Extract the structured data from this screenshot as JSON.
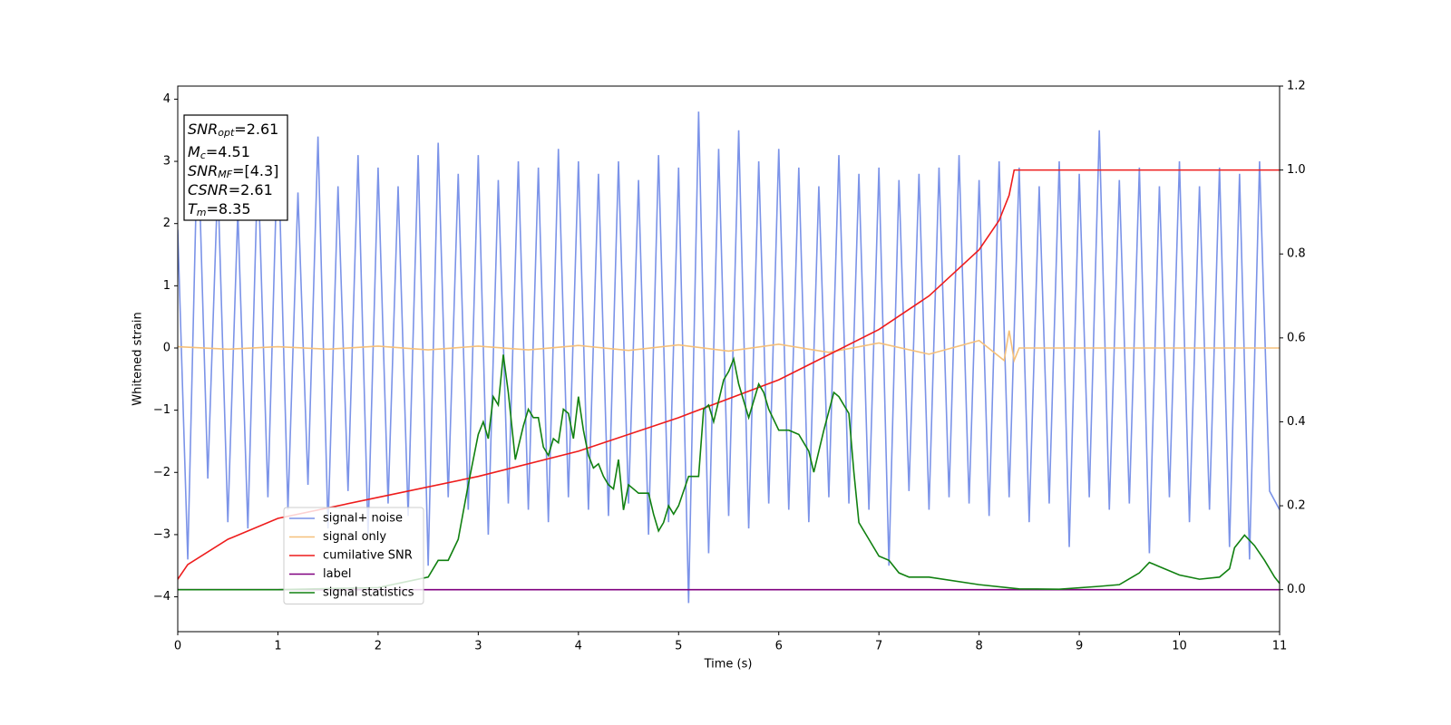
{
  "chart_data": {
    "type": "line",
    "xlabel": "Time (s)",
    "ylabel": "Whitened strain",
    "xlim": [
      0,
      11
    ],
    "xticks": [
      0,
      1,
      2,
      3,
      4,
      5,
      6,
      7,
      8,
      9,
      10,
      11
    ],
    "ylim": [
      -4.56,
      4.21
    ],
    "yticks": [
      {
        "value": -4,
        "label": "−4"
      },
      {
        "value": -3,
        "label": "−3"
      },
      {
        "value": -2,
        "label": "−2"
      },
      {
        "value": -1,
        "label": "−1"
      },
      0,
      1,
      2,
      3,
      4
    ],
    "y2lim": [
      -0.1,
      1.2
    ],
    "y2ticks": [
      {
        "value": 0,
        "label": "0.0"
      },
      {
        "value": 0.2,
        "label": "0.2"
      },
      {
        "value": 0.4,
        "label": "0.4"
      },
      {
        "value": 0.6,
        "label": "0.6"
      },
      {
        "value": 0.8,
        "label": "0.8"
      },
      {
        "value": 1,
        "label": "1.0"
      },
      {
        "value": 1.2,
        "label": "1.2"
      }
    ],
    "legend": "lower left",
    "annotations": [
      {
        "text": "SNR",
        "sub": "opt",
        "after": "=2.61"
      },
      {
        "text": "M",
        "sub": "c",
        "after": "=4.51"
      },
      {
        "text": "SNR",
        "sub": "MF",
        "after": "=[4.3]"
      },
      {
        "text": "CSNR",
        "after": "=2.61"
      },
      {
        "text": "T",
        "sub": "m",
        "after": "=8.35"
      }
    ],
    "series": [
      {
        "name": "signal+ noise",
        "color": "#7b93e8",
        "x": [
          0,
          0.1,
          0.2,
          0.3,
          0.4,
          0.5,
          0.6,
          0.7,
          0.8,
          0.9,
          1,
          1.1,
          1.2,
          1.3,
          1.4,
          1.5,
          1.6,
          1.7,
          1.8,
          1.9,
          2,
          2.1,
          2.2,
          2.3,
          2.4,
          2.5,
          2.6,
          2.7,
          2.8,
          2.9,
          3,
          3.1,
          3.2,
          3.3,
          3.4,
          3.5,
          3.6,
          3.7,
          3.8,
          3.9,
          4,
          4.1,
          4.2,
          4.3,
          4.4,
          4.5,
          4.6,
          4.7,
          4.8,
          4.9,
          5,
          5.1,
          5.2,
          5.3,
          5.4,
          5.5,
          5.6,
          5.7,
          5.8,
          5.9,
          6,
          6.1,
          6.2,
          6.3,
          6.4,
          6.5,
          6.6,
          6.7,
          6.8,
          6.9,
          7,
          7.1,
          7.2,
          7.3,
          7.4,
          7.5,
          7.6,
          7.7,
          7.8,
          7.9,
          8,
          8.1,
          8.2,
          8.3,
          8.4,
          8.5,
          8.6,
          8.7,
          8.8,
          8.9,
          9,
          9.1,
          9.2,
          9.3,
          9.4,
          9.5,
          9.6,
          9.7,
          9.8,
          9.9,
          10,
          10.1,
          10.2,
          10.3,
          10.4,
          10.5,
          10.6,
          10.7,
          10.8,
          10.9,
          11
        ],
        "values": [
          1.9,
          -3.4,
          3.5,
          -2.1,
          2.7,
          -2.8,
          2.2,
          -2.9,
          3.0,
          -2.4,
          3.4,
          -2.6,
          2.5,
          -2.2,
          3.4,
          -2.9,
          2.6,
          -2.3,
          3.1,
          -3.0,
          2.9,
          -2.5,
          2.6,
          -2.7,
          3.1,
          -3.5,
          3.3,
          -2.4,
          2.8,
          -2.6,
          3.1,
          -3.0,
          2.7,
          -2.5,
          3.0,
          -2.6,
          2.9,
          -2.8,
          3.2,
          -2.4,
          3.0,
          -2.6,
          2.8,
          -2.7,
          3.0,
          -2.5,
          2.7,
          -3.0,
          3.1,
          -2.8,
          2.9,
          -4.1,
          3.8,
          -3.3,
          3.2,
          -2.7,
          3.5,
          -2.9,
          3.0,
          -2.5,
          3.2,
          -2.6,
          2.9,
          -2.8,
          2.6,
          -2.4,
          3.1,
          -2.5,
          2.8,
          -2.6,
          2.9,
          -3.5,
          2.7,
          -2.3,
          2.8,
          -2.6,
          2.9,
          -2.4,
          3.1,
          -2.5,
          2.7,
          -2.7,
          3.0,
          -2.4,
          2.9,
          -2.8,
          2.6,
          -2.5,
          3.0,
          -3.2,
          2.8,
          -2.4,
          3.5,
          -2.6,
          2.7,
          -2.5,
          2.9,
          -3.3,
          2.6,
          -2.4,
          3.0,
          -2.8,
          2.6,
          -2.6,
          2.9,
          -3.2,
          2.8,
          -3.4,
          3.0,
          -2.3,
          -2.6
        ]
      },
      {
        "name": "signal only",
        "color": "#f5c07a",
        "x": [
          0,
          0.5,
          1,
          1.5,
          2,
          2.5,
          3,
          3.5,
          4,
          4.5,
          5,
          5.5,
          6,
          6.5,
          7,
          7.5,
          8,
          8.25,
          8.3,
          8.35,
          8.4,
          11
        ],
        "values": [
          0.02,
          -0.02,
          0.02,
          -0.02,
          0.03,
          -0.03,
          0.03,
          -0.03,
          0.04,
          -0.04,
          0.05,
          -0.05,
          0.06,
          -0.07,
          0.08,
          -0.1,
          0.12,
          -0.2,
          0.28,
          -0.2,
          0,
          0
        ]
      },
      {
        "name": "cumilative SNR",
        "color": "#ee1c1c",
        "axis": "y2",
        "x": [
          0,
          0.1,
          0.5,
          1,
          2,
          3,
          4,
          5,
          6,
          7,
          7.5,
          8,
          8.2,
          8.3,
          8.35,
          11
        ],
        "values": [
          0.025,
          0.06,
          0.12,
          0.17,
          0.22,
          0.27,
          0.33,
          0.41,
          0.5,
          0.62,
          0.7,
          0.81,
          0.88,
          0.94,
          1.0,
          1.0
        ]
      },
      {
        "name": "label",
        "color": "#800080",
        "axis": "y2",
        "x": [
          0,
          11
        ],
        "values": [
          0,
          0
        ]
      },
      {
        "name": "signal statistics",
        "color": "#108010",
        "axis": "y2",
        "x": [
          0,
          1,
          2,
          2.3,
          2.5,
          2.6,
          2.7,
          2.8,
          2.9,
          3.0,
          3.05,
          3.1,
          3.15,
          3.2,
          3.25,
          3.3,
          3.37,
          3.45,
          3.5,
          3.55,
          3.6,
          3.65,
          3.7,
          3.75,
          3.8,
          3.85,
          3.9,
          3.95,
          4.0,
          4.05,
          4.1,
          4.15,
          4.2,
          4.25,
          4.3,
          4.35,
          4.4,
          4.45,
          4.5,
          4.6,
          4.7,
          4.75,
          4.8,
          4.85,
          4.9,
          4.95,
          5.0,
          5.1,
          5.2,
          5.25,
          5.3,
          5.35,
          5.45,
          5.5,
          5.55,
          5.6,
          5.7,
          5.8,
          5.85,
          5.9,
          6.0,
          6.1,
          6.2,
          6.3,
          6.35,
          6.45,
          6.55,
          6.6,
          6.7,
          6.75,
          6.8,
          6.9,
          7.0,
          7.1,
          7.2,
          7.3,
          7.5,
          8.0,
          8.4,
          8.8,
          9.2,
          9.4,
          9.6,
          9.7,
          9.8,
          10.0,
          10.2,
          10.4,
          10.5,
          10.55,
          10.65,
          10.75,
          10.85,
          10.95,
          11
        ],
        "values": [
          0,
          0,
          0.005,
          0.02,
          0.03,
          0.07,
          0.07,
          0.12,
          0.25,
          0.37,
          0.4,
          0.36,
          0.46,
          0.44,
          0.56,
          0.47,
          0.31,
          0.39,
          0.43,
          0.41,
          0.41,
          0.34,
          0.32,
          0.36,
          0.35,
          0.43,
          0.42,
          0.36,
          0.46,
          0.38,
          0.32,
          0.29,
          0.3,
          0.27,
          0.25,
          0.24,
          0.31,
          0.19,
          0.25,
          0.23,
          0.23,
          0.18,
          0.14,
          0.16,
          0.2,
          0.18,
          0.2,
          0.27,
          0.27,
          0.43,
          0.44,
          0.4,
          0.5,
          0.52,
          0.55,
          0.49,
          0.41,
          0.49,
          0.47,
          0.43,
          0.38,
          0.38,
          0.37,
          0.33,
          0.28,
          0.38,
          0.47,
          0.46,
          0.42,
          0.28,
          0.16,
          0.12,
          0.08,
          0.07,
          0.04,
          0.03,
          0.03,
          0.012,
          0.002,
          0.001,
          0.008,
          0.012,
          0.04,
          0.065,
          0.055,
          0.035,
          0.025,
          0.03,
          0.05,
          0.1,
          0.13,
          0.105,
          0.07,
          0.03,
          0.015
        ]
      }
    ]
  }
}
